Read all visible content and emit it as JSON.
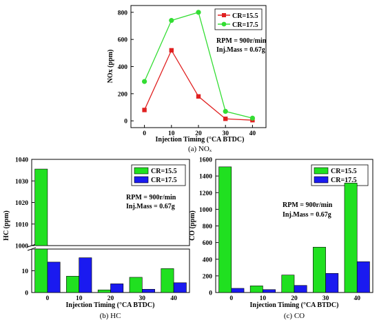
{
  "colors": {
    "cr155": "#20e020",
    "cr175": "#1a1af0",
    "nox155": "#e02020",
    "nox175": "#33dd33"
  },
  "chart_data": [
    {
      "type": "line",
      "caption": "(a) NOₓ",
      "xlabel": "Injection Timing (°CA BTDC)",
      "ylabel": "NOx (ppm)",
      "x": [
        0,
        10,
        20,
        30,
        40
      ],
      "xlim": [
        -5,
        45
      ],
      "ylim": [
        -50,
        850
      ],
      "yticks": [
        0,
        200,
        400,
        600,
        800
      ],
      "series": [
        {
          "name": "CR=15.5",
          "values": [
            80,
            520,
            180,
            15,
            5
          ],
          "marker": "square",
          "color": "#e02020"
        },
        {
          "name": "CR=17.5",
          "values": [
            290,
            740,
            800,
            70,
            20
          ],
          "marker": "circle",
          "color": "#33dd33"
        }
      ],
      "annotations": [
        "RPM = 900r/min",
        "Inj.Mass = 0.67g"
      ],
      "legend": "top-right"
    },
    {
      "type": "bar",
      "caption": "(b) HC",
      "xlabel": "Injection Timing (°CA BTDC)",
      "ylabel": "HC (ppm)",
      "categories": [
        "0",
        "10",
        "20",
        "30",
        "40"
      ],
      "axis_break": {
        "lower": [
          0,
          20
        ],
        "upper": [
          1000,
          1040
        ]
      },
      "yticks_lower": [
        0,
        10
      ],
      "yticks_upper": [
        1000,
        1010,
        1020,
        1030,
        1040
      ],
      "series": [
        {
          "name": "CR=15.5",
          "values": [
            1035.5,
            7.5,
            1.2,
            7,
            11
          ],
          "color": "#20e020"
        },
        {
          "name": "CR=17.5",
          "values": [
            14,
            16,
            4,
            1.5,
            4.5
          ],
          "color": "#1a1af0"
        }
      ],
      "annotations": [
        "RPM = 900r/min",
        "Inj.Mass = 0.67g"
      ],
      "legend": "top-right"
    },
    {
      "type": "bar",
      "caption": "(c) CO",
      "xlabel": "Injection Timing (°CA BTDC)",
      "ylabel": "CO (ppm)",
      "categories": [
        "0",
        "10",
        "20",
        "30",
        "40"
      ],
      "ylim": [
        0,
        1600
      ],
      "yticks": [
        0,
        200,
        400,
        600,
        800,
        1000,
        1200,
        1400,
        1600
      ],
      "series": [
        {
          "name": "CR=15.5",
          "values": [
            1510,
            80,
            210,
            545,
            1315
          ],
          "color": "#20e020"
        },
        {
          "name": "CR=17.5",
          "values": [
            50,
            35,
            85,
            230,
            370
          ],
          "color": "#1a1af0"
        }
      ],
      "annotations": [
        "RPM = 900r/min",
        "Inj.Mass = 0.67g"
      ],
      "legend": "top-right"
    }
  ]
}
